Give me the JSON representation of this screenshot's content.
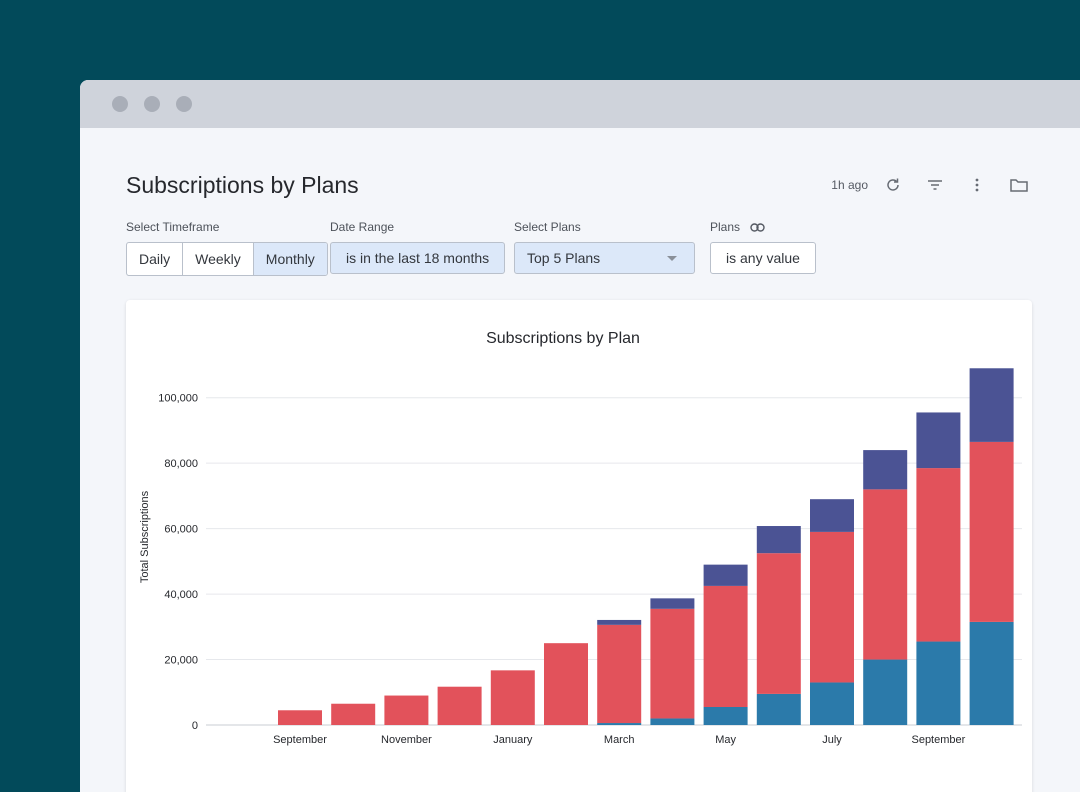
{
  "window": {
    "controls": [
      "close",
      "minimize",
      "maximize"
    ]
  },
  "header": {
    "title": "Subscriptions by Plans",
    "updated": "1h ago",
    "icons": [
      "refresh-icon",
      "filter-icon",
      "more-vertical-icon",
      "folder-icon"
    ]
  },
  "filters": {
    "timeframe": {
      "label": "Select Timeframe",
      "options": [
        "Daily",
        "Weekly",
        "Monthly"
      ],
      "selected": "Monthly"
    },
    "date_range": {
      "label": "Date Range",
      "value": "is in the last 18 months"
    },
    "plans_select": {
      "label": "Select Plans",
      "value": "Top 5 Plans"
    },
    "plans": {
      "label": "Plans",
      "value": "is any value"
    }
  },
  "colors": {
    "plan_a": "#2b7aaa",
    "plan_b": "#e2525b",
    "plan_c": "#4b5394",
    "background": "#024a5a"
  },
  "chart_data": {
    "type": "bar",
    "stacked": true,
    "title": "Subscriptions by Plan",
    "xlabel": "",
    "ylabel": "Total Subscriptions",
    "ylim": [
      0,
      110000
    ],
    "yticks": [
      0,
      20000,
      40000,
      60000,
      80000,
      100000
    ],
    "ytick_labels": [
      "0",
      "20,000",
      "40,000",
      "60,000",
      "80,000",
      "100,000"
    ],
    "categories": [
      "September",
      "",
      "November",
      "",
      "January",
      "",
      "March",
      "",
      "May",
      "",
      "July",
      "",
      "September",
      ""
    ],
    "series": [
      {
        "color": "#2b7aaa",
        "values": [
          0,
          0,
          0,
          0,
          0,
          0,
          600,
          2000,
          5500,
          9500,
          13000,
          20000,
          25500,
          31500
        ]
      },
      {
        "color": "#e2525b",
        "values": [
          4500,
          6500,
          9000,
          11700,
          16700,
          25000,
          30000,
          33500,
          37000,
          43000,
          46000,
          52000,
          53000,
          55000
        ]
      },
      {
        "color": "#4b5394",
        "values": [
          0,
          0,
          0,
          0,
          0,
          0,
          1500,
          3200,
          6500,
          8300,
          10000,
          12000,
          17000,
          22500
        ]
      }
    ],
    "grid": true
  }
}
